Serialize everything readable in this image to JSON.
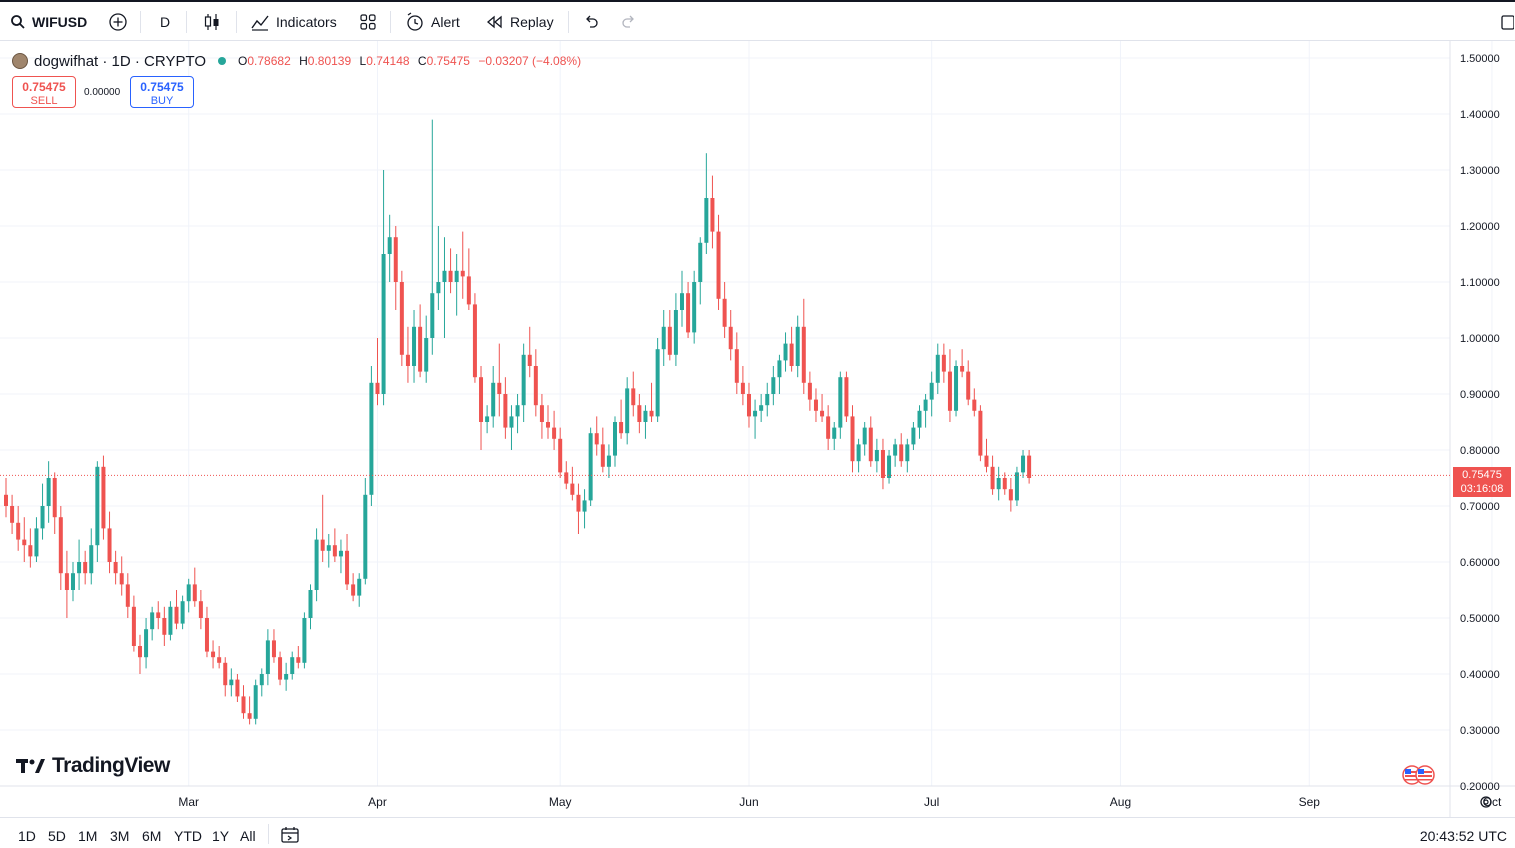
{
  "toolbar": {
    "symbol": "WIFUSD",
    "interval": "D",
    "indicators_label": "Indicators",
    "alert_label": "Alert",
    "replay_label": "Replay"
  },
  "legend": {
    "name": "dogwifhat · 1D · CRYPTO",
    "o_label": "O",
    "o": "0.78682",
    "h_label": "H",
    "h": "0.80139",
    "l_label": "L",
    "l": "0.74148",
    "c_label": "C",
    "c": "0.75475",
    "change": "−0.03207 (−4.08%)"
  },
  "trade": {
    "sell_price": "0.75475",
    "sell_label": "SELL",
    "buy_price": "0.75475",
    "buy_label": "BUY",
    "spread": "0.00000"
  },
  "last_price": {
    "price": "0.75475",
    "countdown": "03:16:08"
  },
  "branding": {
    "logo_text": "TradingView"
  },
  "bottom": {
    "ranges": [
      "1D",
      "5D",
      "1M",
      "3M",
      "6M",
      "YTD",
      "1Y",
      "All"
    ],
    "clock": "20:43:52 UTC"
  },
  "colors": {
    "up": "#26a69a",
    "down": "#ef5350",
    "grid": "#f0f3fa",
    "text": "#131722"
  },
  "chart_data": {
    "type": "candlestick",
    "ylim": [
      0.2,
      1.5
    ],
    "y_ticks": [
      "1.50000",
      "1.40000",
      "1.30000",
      "1.20000",
      "1.10000",
      "1.00000",
      "0.90000",
      "0.80000",
      "0.70000",
      "0.60000",
      "0.50000",
      "0.40000",
      "0.30000",
      "0.20000"
    ],
    "x_ticks": [
      "Mar",
      "Apr",
      "May",
      "Jun",
      "Jul",
      "Aug",
      "Sep",
      "Oct"
    ],
    "x_tick_days": [
      30,
      61,
      91,
      122,
      152,
      183,
      214,
      244
    ],
    "grid": true,
    "last_price": 0.75475,
    "series_ohlc": [
      [
        0.72,
        0.75,
        0.68,
        0.7
      ],
      [
        0.7,
        0.72,
        0.65,
        0.67
      ],
      [
        0.67,
        0.7,
        0.62,
        0.64
      ],
      [
        0.64,
        0.68,
        0.6,
        0.63
      ],
      [
        0.63,
        0.66,
        0.59,
        0.61
      ],
      [
        0.61,
        0.68,
        0.6,
        0.66
      ],
      [
        0.66,
        0.74,
        0.64,
        0.7
      ],
      [
        0.7,
        0.78,
        0.67,
        0.75
      ],
      [
        0.75,
        0.76,
        0.65,
        0.68
      ],
      [
        0.68,
        0.7,
        0.55,
        0.58
      ],
      [
        0.58,
        0.62,
        0.5,
        0.55
      ],
      [
        0.55,
        0.6,
        0.53,
        0.58
      ],
      [
        0.58,
        0.64,
        0.55,
        0.6
      ],
      [
        0.6,
        0.62,
        0.56,
        0.58
      ],
      [
        0.58,
        0.66,
        0.56,
        0.63
      ],
      [
        0.63,
        0.78,
        0.6,
        0.77
      ],
      [
        0.77,
        0.79,
        0.64,
        0.66
      ],
      [
        0.66,
        0.69,
        0.58,
        0.6
      ],
      [
        0.6,
        0.62,
        0.56,
        0.58
      ],
      [
        0.58,
        0.61,
        0.54,
        0.56
      ],
      [
        0.56,
        0.58,
        0.5,
        0.52
      ],
      [
        0.52,
        0.54,
        0.44,
        0.45
      ],
      [
        0.45,
        0.47,
        0.4,
        0.43
      ],
      [
        0.43,
        0.5,
        0.41,
        0.48
      ],
      [
        0.48,
        0.52,
        0.46,
        0.51
      ],
      [
        0.51,
        0.53,
        0.48,
        0.5
      ],
      [
        0.5,
        0.52,
        0.45,
        0.47
      ],
      [
        0.47,
        0.53,
        0.46,
        0.52
      ],
      [
        0.52,
        0.55,
        0.48,
        0.49
      ],
      [
        0.49,
        0.54,
        0.48,
        0.53
      ],
      [
        0.53,
        0.57,
        0.51,
        0.56
      ],
      [
        0.56,
        0.59,
        0.52,
        0.53
      ],
      [
        0.53,
        0.55,
        0.48,
        0.5
      ],
      [
        0.5,
        0.52,
        0.43,
        0.44
      ],
      [
        0.44,
        0.46,
        0.41,
        0.43
      ],
      [
        0.43,
        0.45,
        0.41,
        0.42
      ],
      [
        0.42,
        0.43,
        0.36,
        0.38
      ],
      [
        0.38,
        0.41,
        0.36,
        0.39
      ],
      [
        0.39,
        0.4,
        0.35,
        0.36
      ],
      [
        0.36,
        0.38,
        0.32,
        0.33
      ],
      [
        0.33,
        0.36,
        0.31,
        0.32
      ],
      [
        0.32,
        0.39,
        0.31,
        0.38
      ],
      [
        0.38,
        0.41,
        0.36,
        0.4
      ],
      [
        0.4,
        0.48,
        0.38,
        0.46
      ],
      [
        0.46,
        0.48,
        0.42,
        0.43
      ],
      [
        0.43,
        0.44,
        0.38,
        0.39
      ],
      [
        0.39,
        0.42,
        0.37,
        0.4
      ],
      [
        0.4,
        0.44,
        0.39,
        0.43
      ],
      [
        0.43,
        0.45,
        0.41,
        0.42
      ],
      [
        0.42,
        0.51,
        0.41,
        0.5
      ],
      [
        0.5,
        0.56,
        0.48,
        0.55
      ],
      [
        0.55,
        0.66,
        0.53,
        0.64
      ],
      [
        0.64,
        0.72,
        0.6,
        0.62
      ],
      [
        0.62,
        0.65,
        0.59,
        0.63
      ],
      [
        0.63,
        0.66,
        0.6,
        0.61
      ],
      [
        0.61,
        0.64,
        0.58,
        0.62
      ],
      [
        0.62,
        0.65,
        0.55,
        0.56
      ],
      [
        0.56,
        0.58,
        0.53,
        0.54
      ],
      [
        0.54,
        0.58,
        0.52,
        0.57
      ],
      [
        0.57,
        0.75,
        0.56,
        0.72
      ],
      [
        0.72,
        0.95,
        0.7,
        0.92
      ],
      [
        0.92,
        1.0,
        0.88,
        0.9
      ],
      [
        0.9,
        1.3,
        0.88,
        1.15
      ],
      [
        1.15,
        1.22,
        1.1,
        1.18
      ],
      [
        1.18,
        1.2,
        1.05,
        1.1
      ],
      [
        1.1,
        1.12,
        0.95,
        0.97
      ],
      [
        0.97,
        1.02,
        0.92,
        0.95
      ],
      [
        0.95,
        1.05,
        0.92,
        1.02
      ],
      [
        1.02,
        1.06,
        0.93,
        0.94
      ],
      [
        0.94,
        1.04,
        0.92,
        1.0
      ],
      [
        1.0,
        1.39,
        0.97,
        1.08
      ],
      [
        1.08,
        1.2,
        1.05,
        1.1
      ],
      [
        1.1,
        1.18,
        1.0,
        1.12
      ],
      [
        1.12,
        1.16,
        1.08,
        1.1
      ],
      [
        1.1,
        1.15,
        1.04,
        1.12
      ],
      [
        1.12,
        1.19,
        1.07,
        1.11
      ],
      [
        1.11,
        1.16,
        1.05,
        1.06
      ],
      [
        1.06,
        1.08,
        0.92,
        0.93
      ],
      [
        0.93,
        0.95,
        0.8,
        0.85
      ],
      [
        0.85,
        0.88,
        0.83,
        0.86
      ],
      [
        0.86,
        0.95,
        0.84,
        0.92
      ],
      [
        0.92,
        0.99,
        0.86,
        0.9
      ],
      [
        0.9,
        0.93,
        0.82,
        0.84
      ],
      [
        0.84,
        0.88,
        0.8,
        0.86
      ],
      [
        0.86,
        0.9,
        0.83,
        0.88
      ],
      [
        0.88,
        0.99,
        0.85,
        0.97
      ],
      [
        0.97,
        1.02,
        0.93,
        0.95
      ],
      [
        0.95,
        0.98,
        0.86,
        0.88
      ],
      [
        0.88,
        0.9,
        0.82,
        0.85
      ],
      [
        0.85,
        0.88,
        0.82,
        0.84
      ],
      [
        0.84,
        0.87,
        0.8,
        0.82
      ],
      [
        0.82,
        0.84,
        0.75,
        0.76
      ],
      [
        0.76,
        0.78,
        0.73,
        0.74
      ],
      [
        0.74,
        0.77,
        0.71,
        0.72
      ],
      [
        0.72,
        0.74,
        0.65,
        0.69
      ],
      [
        0.69,
        0.73,
        0.66,
        0.71
      ],
      [
        0.71,
        0.84,
        0.7,
        0.83
      ],
      [
        0.83,
        0.86,
        0.79,
        0.81
      ],
      [
        0.81,
        0.84,
        0.76,
        0.77
      ],
      [
        0.77,
        0.81,
        0.75,
        0.79
      ],
      [
        0.79,
        0.86,
        0.77,
        0.85
      ],
      [
        0.85,
        0.89,
        0.82,
        0.83
      ],
      [
        0.83,
        0.93,
        0.81,
        0.91
      ],
      [
        0.91,
        0.94,
        0.86,
        0.88
      ],
      [
        0.88,
        0.9,
        0.83,
        0.85
      ],
      [
        0.85,
        0.88,
        0.82,
        0.87
      ],
      [
        0.87,
        0.92,
        0.85,
        0.86
      ],
      [
        0.86,
        1.0,
        0.85,
        0.98
      ],
      [
        0.98,
        1.05,
        0.95,
        1.02
      ],
      [
        1.02,
        1.05,
        0.96,
        0.97
      ],
      [
        0.97,
        1.08,
        0.95,
        1.05
      ],
      [
        1.05,
        1.12,
        1.02,
        1.08
      ],
      [
        1.08,
        1.1,
        1.0,
        1.01
      ],
      [
        1.01,
        1.12,
        0.99,
        1.1
      ],
      [
        1.1,
        1.18,
        1.06,
        1.17
      ],
      [
        1.17,
        1.33,
        1.15,
        1.25
      ],
      [
        1.25,
        1.29,
        1.16,
        1.19
      ],
      [
        1.19,
        1.22,
        1.05,
        1.07
      ],
      [
        1.07,
        1.1,
        1.0,
        1.02
      ],
      [
        1.02,
        1.05,
        0.96,
        0.98
      ],
      [
        0.98,
        1.01,
        0.9,
        0.92
      ],
      [
        0.92,
        0.95,
        0.88,
        0.9
      ],
      [
        0.9,
        0.92,
        0.84,
        0.86
      ],
      [
        0.86,
        0.89,
        0.82,
        0.87
      ],
      [
        0.87,
        0.9,
        0.85,
        0.88
      ],
      [
        0.88,
        0.92,
        0.86,
        0.9
      ],
      [
        0.9,
        0.95,
        0.88,
        0.93
      ],
      [
        0.93,
        0.97,
        0.9,
        0.96
      ],
      [
        0.96,
        1.01,
        0.94,
        0.99
      ],
      [
        0.99,
        1.02,
        0.94,
        0.95
      ],
      [
        0.95,
        1.04,
        0.93,
        1.02
      ],
      [
        1.02,
        1.07,
        0.9,
        0.92
      ],
      [
        0.92,
        0.94,
        0.87,
        0.89
      ],
      [
        0.89,
        0.91,
        0.85,
        0.87
      ],
      [
        0.87,
        0.9,
        0.85,
        0.86
      ],
      [
        0.86,
        0.88,
        0.8,
        0.82
      ],
      [
        0.82,
        0.85,
        0.8,
        0.84
      ],
      [
        0.84,
        0.94,
        0.82,
        0.93
      ],
      [
        0.93,
        0.94,
        0.85,
        0.86
      ],
      [
        0.86,
        0.88,
        0.76,
        0.78
      ],
      [
        0.78,
        0.82,
        0.76,
        0.81
      ],
      [
        0.81,
        0.85,
        0.79,
        0.84
      ],
      [
        0.84,
        0.86,
        0.77,
        0.78
      ],
      [
        0.78,
        0.82,
        0.76,
        0.8
      ],
      [
        0.8,
        0.82,
        0.73,
        0.75
      ],
      [
        0.75,
        0.8,
        0.74,
        0.79
      ],
      [
        0.79,
        0.82,
        0.77,
        0.81
      ],
      [
        0.81,
        0.83,
        0.77,
        0.78
      ],
      [
        0.78,
        0.82,
        0.76,
        0.81
      ],
      [
        0.81,
        0.85,
        0.8,
        0.84
      ],
      [
        0.84,
        0.88,
        0.82,
        0.87
      ],
      [
        0.87,
        0.9,
        0.84,
        0.89
      ],
      [
        0.89,
        0.94,
        0.86,
        0.92
      ],
      [
        0.92,
        0.99,
        0.9,
        0.97
      ],
      [
        0.97,
        0.99,
        0.92,
        0.94
      ],
      [
        0.94,
        0.98,
        0.85,
        0.87
      ],
      [
        0.87,
        0.96,
        0.86,
        0.95
      ],
      [
        0.95,
        0.98,
        0.93,
        0.94
      ],
      [
        0.94,
        0.96,
        0.88,
        0.89
      ],
      [
        0.89,
        0.91,
        0.86,
        0.87
      ],
      [
        0.87,
        0.88,
        0.78,
        0.79
      ],
      [
        0.79,
        0.82,
        0.76,
        0.77
      ],
      [
        0.77,
        0.79,
        0.72,
        0.73
      ],
      [
        0.73,
        0.77,
        0.71,
        0.75
      ],
      [
        0.75,
        0.76,
        0.72,
        0.73
      ],
      [
        0.73,
        0.75,
        0.69,
        0.71
      ],
      [
        0.71,
        0.77,
        0.7,
        0.76
      ],
      [
        0.76,
        0.8,
        0.75,
        0.79
      ],
      [
        0.79,
        0.8,
        0.74,
        0.75
      ]
    ]
  }
}
